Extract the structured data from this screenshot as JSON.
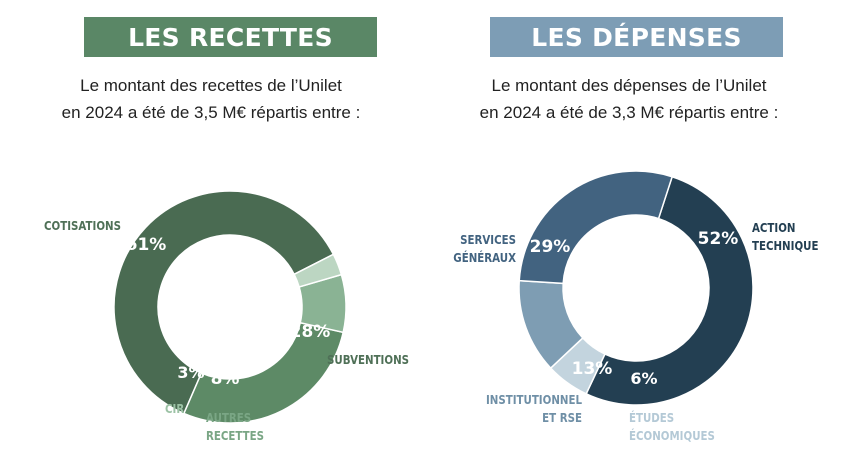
{
  "chart_data": [
    {
      "type": "pie",
      "donut": true,
      "title": "LES RECETTES",
      "subtitle": [
        "Le montant des recettes de l’Unilet",
        "en 2024 a été de 3,5 M€ répartis entre :"
      ],
      "slices": [
        {
          "label": "COTISATIONS",
          "label_lines": [
            "COTISATIONS"
          ],
          "value": 61,
          "value_text": "61%",
          "color": "#4a6b52",
          "label_color": "#4f7057",
          "value_color": "#ffffff"
        },
        {
          "label": "SUBVENTIONS",
          "label_lines": [
            "SUBVENTIONS"
          ],
          "value": 28,
          "value_text": "28%",
          "color": "#5d8a66",
          "label_color": "#4f7057",
          "value_color": "#ffffff"
        },
        {
          "label": "AUTRES RECETTES",
          "label_lines": [
            "AUTRES",
            "RECETTES"
          ],
          "value": 8,
          "value_text": "8%",
          "color": "#8ab394",
          "label_color": "#7aa685",
          "value_color": "#ffffff"
        },
        {
          "label": "CIR",
          "label_lines": [
            "CIR"
          ],
          "value": 3,
          "value_text": "3%",
          "color": "#bcd6c2",
          "label_color": "#9cc2a5",
          "value_color": "#ffffff"
        }
      ],
      "header_color": "#5a8766"
    },
    {
      "type": "pie",
      "donut": true,
      "title": "LES DÉPENSES",
      "subtitle": [
        "Le montant des dépenses de l’Unilet",
        "en 2024 a été de 3,3 M€ répartis entre :"
      ],
      "slices": [
        {
          "label": "ACTION TECHNIQUE",
          "label_lines": [
            "ACTION",
            "TECHNIQUE"
          ],
          "value": 52,
          "value_text": "52%",
          "color": "#233f52",
          "label_color": "#233f52",
          "value_color": "#ffffff"
        },
        {
          "label": "ÉTUDES ÉCONOMIQUES",
          "label_lines": [
            "ÉTUDES",
            "ÉCONOMIQUES"
          ],
          "value": 6,
          "value_text": "6%",
          "color": "#c3d4de",
          "label_color": "#b4c9d6",
          "value_color": "#ffffff"
        },
        {
          "label": "INSTITUTIONNEL ET RSE",
          "label_lines": [
            "INSTITUTIONNEL",
            "ET RSE"
          ],
          "value": 13,
          "value_text": "13%",
          "color": "#7e9db3",
          "label_color": "#6f8fa6",
          "value_color": "#ffffff"
        },
        {
          "label": "SERVICES GÉNÉRAUX",
          "label_lines": [
            "SERVICES",
            "GÉNÉRAUX"
          ],
          "value": 29,
          "value_text": "29%",
          "color": "#426380",
          "label_color": "#426380",
          "value_color": "#ffffff"
        }
      ],
      "header_color": "#7d9db5"
    }
  ]
}
